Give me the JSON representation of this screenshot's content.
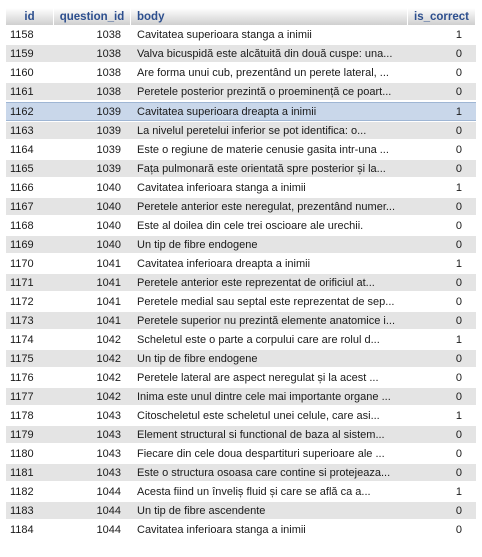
{
  "columns": {
    "id": "id",
    "question_id": "question_id",
    "body": "body",
    "is_correct": "is_correct"
  },
  "selected_row": 4,
  "rows": [
    {
      "id": "1158",
      "question_id": "1038",
      "body": "Cavitatea superioara stanga a inimii",
      "is_correct": "1"
    },
    {
      "id": "1159",
      "question_id": "1038",
      "body": "Valva bicuspidă este alcătuită din două cuspe: una...",
      "is_correct": "0"
    },
    {
      "id": "1160",
      "question_id": "1038",
      "body": "Are forma unui cub, prezentând un perete lateral, ...",
      "is_correct": "0"
    },
    {
      "id": "1161",
      "question_id": "1038",
      "body": "Peretele posterior prezintă o proeminență ce poart...",
      "is_correct": "0"
    },
    {
      "id": "1162",
      "question_id": "1039",
      "body": "Cavitatea superioara dreapta a inimii",
      "is_correct": "1"
    },
    {
      "id": "1163",
      "question_id": "1039",
      "body": "La nivelul peretelui inferior se pot identifica: o...",
      "is_correct": "0"
    },
    {
      "id": "1164",
      "question_id": "1039",
      "body": "Este o regiune de materie cenusie gasita intr-una ...",
      "is_correct": "0"
    },
    {
      "id": "1165",
      "question_id": "1039",
      "body": "Fața pulmonară este orientată spre posterior și la...",
      "is_correct": "0"
    },
    {
      "id": "1166",
      "question_id": "1040",
      "body": "Cavitatea inferioara stanga a inimii",
      "is_correct": "1"
    },
    {
      "id": "1167",
      "question_id": "1040",
      "body": "Peretele anterior este neregulat, prezentând numer...",
      "is_correct": "0"
    },
    {
      "id": "1168",
      "question_id": "1040",
      "body": "Este al doilea din cele trei oscioare ale urechii.",
      "is_correct": "0"
    },
    {
      "id": "1169",
      "question_id": "1040",
      "body": "Un tip de fibre endogene",
      "is_correct": "0"
    },
    {
      "id": "1170",
      "question_id": "1041",
      "body": "Cavitatea inferioara dreapta a inimii",
      "is_correct": "1"
    },
    {
      "id": "1171",
      "question_id": "1041",
      "body": "Peretele anterior este reprezentat de orificiul at...",
      "is_correct": "0"
    },
    {
      "id": "1172",
      "question_id": "1041",
      "body": "Peretele medial sau septal este reprezentat de sep...",
      "is_correct": "0"
    },
    {
      "id": "1173",
      "question_id": "1041",
      "body": "Peretele superior nu prezintă elemente anatomice i...",
      "is_correct": "0"
    },
    {
      "id": "1174",
      "question_id": "1042",
      "body": "Scheletul este o parte a corpului care are rolul d...",
      "is_correct": "1"
    },
    {
      "id": "1175",
      "question_id": "1042",
      "body": "Un tip de fibre endogene",
      "is_correct": "0"
    },
    {
      "id": "1176",
      "question_id": "1042",
      "body": "Peretele lateral are aspect neregulat și la acest ...",
      "is_correct": "0"
    },
    {
      "id": "1177",
      "question_id": "1042",
      "body": "Inima este unul dintre cele mai importante organe ...",
      "is_correct": "0"
    },
    {
      "id": "1178",
      "question_id": "1043",
      "body": "Citoscheletul este scheletul unei celule, care asi...",
      "is_correct": "1"
    },
    {
      "id": "1179",
      "question_id": "1043",
      "body": "Element structural si functional de baza al sistem...",
      "is_correct": "0"
    },
    {
      "id": "1180",
      "question_id": "1043",
      "body": "Fiecare din cele doua despartituri superioare ale ...",
      "is_correct": "0"
    },
    {
      "id": "1181",
      "question_id": "1043",
      "body": "Este o structura osoasa care contine si protejeaza...",
      "is_correct": "0"
    },
    {
      "id": "1182",
      "question_id": "1044",
      "body": "Acesta fiind un înveliș fluid și care se află ca a...",
      "is_correct": "1"
    },
    {
      "id": "1183",
      "question_id": "1044",
      "body": "Un tip de fibre ascendente",
      "is_correct": "0"
    },
    {
      "id": "1184",
      "question_id": "1044",
      "body": "Cavitatea inferioara stanga a inimii",
      "is_correct": "0"
    }
  ]
}
